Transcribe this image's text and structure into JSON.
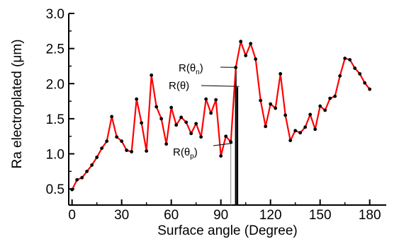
{
  "chart_data": {
    "type": "line",
    "xlabel": "Surface angle (Degree)",
    "ylabel": "Ra electroplated (μm)",
    "xlim": [
      -2,
      190
    ],
    "ylim": [
      0.27,
      3.0
    ],
    "xticks": [
      0,
      30,
      60,
      90,
      120,
      150,
      180
    ],
    "xtick_labels": [
      "0",
      "30",
      "60",
      "90",
      "120",
      "150",
      "180"
    ],
    "yticks": [
      0.5,
      1.0,
      1.5,
      2.0,
      2.5,
      3.0
    ],
    "ytick_labels": [
      "0.5",
      "1.0",
      "1.5",
      "2.0",
      "2.5",
      "3.0"
    ],
    "grid": false,
    "colors": {
      "line": "#ff0000",
      "marker": "#000000",
      "axis": "#000000",
      "vline_light": "#888888"
    },
    "series": [
      {
        "x": [
          0,
          3,
          6,
          9,
          12,
          15,
          18,
          21,
          24,
          27,
          30,
          33,
          36,
          39,
          42,
          45,
          48,
          51,
          54,
          57,
          60,
          63,
          66,
          69,
          72,
          75,
          78,
          81,
          84,
          87,
          90,
          93,
          96,
          99,
          102,
          105,
          108,
          111,
          114,
          117,
          120,
          123,
          126,
          129,
          132,
          135,
          138,
          141,
          144,
          147,
          150,
          153,
          156,
          159,
          162,
          165,
          168,
          171,
          174,
          177,
          180
        ],
        "y": [
          0.49,
          0.63,
          0.66,
          0.75,
          0.84,
          0.95,
          1.08,
          1.18,
          1.53,
          1.24,
          1.18,
          1.05,
          1.03,
          1.78,
          1.44,
          1.04,
          2.12,
          1.67,
          1.5,
          1.14,
          1.66,
          1.41,
          1.52,
          1.45,
          1.29,
          1.43,
          1.24,
          1.78,
          1.58,
          1.77,
          0.97,
          1.25,
          1.17,
          2.23,
          2.6,
          2.4,
          2.57,
          2.35,
          1.76,
          1.39,
          1.71,
          1.65,
          2.14,
          1.55,
          1.19,
          1.33,
          1.3,
          1.38,
          1.56,
          1.35,
          1.68,
          1.62,
          1.79,
          1.82,
          2.11,
          2.36,
          2.34,
          2.22,
          2.14,
          2.01,
          1.92
        ]
      }
    ],
    "vlines": [
      {
        "x": 96,
        "y": 1.17,
        "style": "thin-grey"
      },
      {
        "x": 99,
        "y": 2.23,
        "style": "thick-black"
      },
      {
        "x": 100,
        "y": 1.95,
        "style": "thick-black"
      }
    ],
    "annotations": [
      {
        "main": "R(θ",
        "sub": "n",
        "close": ")",
        "at_x": 100,
        "at_y": 2.23
      },
      {
        "main": "R(θ)",
        "sub": "",
        "close": "",
        "at_x": 101,
        "at_y": 1.96
      },
      {
        "main": "R(θ",
        "sub": "p",
        "close": ")",
        "at_x": 97,
        "at_y": 1.15
      }
    ]
  }
}
